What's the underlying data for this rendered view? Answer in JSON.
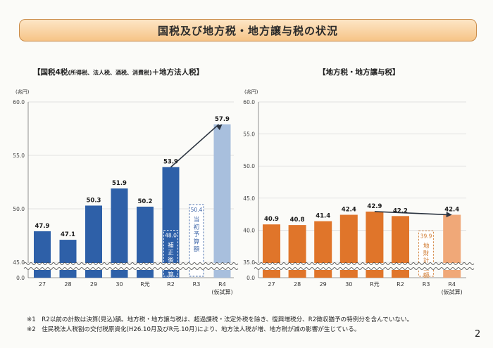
{
  "header": {
    "title": "国税及び地方税・地方譲与税の状況"
  },
  "left_panel": {
    "title_main": "【国税4税",
    "title_small": "(所得税、法人税、酒税、消費税)",
    "title_tail": "＋地方法人税】"
  },
  "right_panel": {
    "title": "【地方税・地方譲与税】"
  },
  "notes": [
    "※1　R2以前の計数は決算(見込)額。地方税・地方譲与税は、超過課税・法定外税を除き、復興増税分、R2徴収猶予の特例分を含んでいない。",
    "※2　住民税法人税割の交付税原資化(H26.10月及びR元.10月)により、地方法人税が増、地方税が減の影響が生じている。"
  ],
  "page_number": "2",
  "chart_data": [
    {
      "type": "bar",
      "ylabel": "(兆円)",
      "ylim": [
        0,
        60
      ],
      "yticks": [
        "0.0",
        "45.0",
        "50.0",
        "55.0",
        "60.0"
      ],
      "axis_break": true,
      "categories": [
        "27",
        "28",
        "29",
        "30",
        "R元",
        "R2",
        "R3",
        "R4"
      ],
      "category_sublabels": [
        "",
        "",
        "",
        "",
        "",
        "",
        "",
        "(仮試算)"
      ],
      "values": [
        47.9,
        47.1,
        50.3,
        51.9,
        50.2,
        53.9,
        null,
        57.9
      ],
      "value_labels": [
        "47.9",
        "47.1",
        "50.3",
        "51.9",
        "50.2",
        "53.9",
        "",
        "57.9"
      ],
      "overlays": [
        {
          "category": "R2",
          "value": 48.0,
          "label": "48.0",
          "text": "補正後予算額",
          "style": "dashed-inner"
        },
        {
          "category": "R3",
          "value": 50.4,
          "label": "50.4",
          "text": "当初予算額",
          "style": "dashed-outline"
        }
      ],
      "arrow": {
        "from": "R2",
        "to": "R4"
      },
      "colors": {
        "bar": "#2e60a8",
        "last": "#a8bfdd",
        "overlay": "#3e66a8"
      }
    },
    {
      "type": "bar",
      "ylabel": "(兆円)",
      "ylim": [
        0,
        60
      ],
      "yticks": [
        "0.0",
        "35.0",
        "40.0",
        "45.0",
        "50.0",
        "55.0",
        "60.0"
      ],
      "axis_break": true,
      "categories": [
        "27",
        "28",
        "29",
        "30",
        "R元",
        "R2",
        "R3",
        "R4"
      ],
      "category_sublabels": [
        "",
        "",
        "",
        "",
        "",
        "",
        "",
        "(仮試算)"
      ],
      "values": [
        40.9,
        40.8,
        41.4,
        42.4,
        42.9,
        42.2,
        null,
        42.4
      ],
      "value_labels": [
        "40.9",
        "40.8",
        "41.4",
        "42.4",
        "42.9",
        "42.2",
        "",
        "42.4"
      ],
      "overlays": [
        {
          "category": "R3",
          "value": 39.9,
          "label": "39.9",
          "text": "地財計画額",
          "style": "dashed-outline"
        }
      ],
      "arrow": {
        "from": "R元",
        "to": "R4"
      },
      "colors": {
        "bar": "#e0752a",
        "last": "#f0a878",
        "overlay": "#d07a30"
      }
    }
  ]
}
